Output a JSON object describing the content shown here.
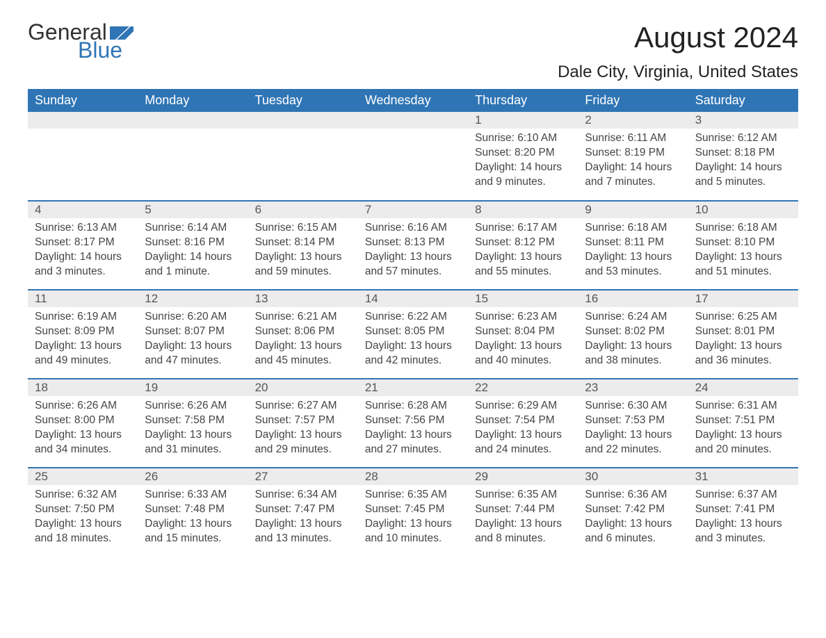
{
  "logo": {
    "text_general": "General",
    "text_blue": "Blue",
    "flag_color": "#2f75b5"
  },
  "title": "August 2024",
  "location": "Dale City, Virginia, United States",
  "colors": {
    "header_bg": "#2f75b5",
    "header_text": "#ffffff",
    "daynum_bg": "#ececec",
    "daynum_text": "#555555",
    "body_text": "#444444",
    "rule": "#2f75b5",
    "page_bg": "#ffffff"
  },
  "day_headers": [
    "Sunday",
    "Monday",
    "Tuesday",
    "Wednesday",
    "Thursday",
    "Friday",
    "Saturday"
  ],
  "weeks": [
    [
      null,
      null,
      null,
      null,
      {
        "n": "1",
        "sunrise": "Sunrise: 6:10 AM",
        "sunset": "Sunset: 8:20 PM",
        "daylight": "Daylight: 14 hours and 9 minutes."
      },
      {
        "n": "2",
        "sunrise": "Sunrise: 6:11 AM",
        "sunset": "Sunset: 8:19 PM",
        "daylight": "Daylight: 14 hours and 7 minutes."
      },
      {
        "n": "3",
        "sunrise": "Sunrise: 6:12 AM",
        "sunset": "Sunset: 8:18 PM",
        "daylight": "Daylight: 14 hours and 5 minutes."
      }
    ],
    [
      {
        "n": "4",
        "sunrise": "Sunrise: 6:13 AM",
        "sunset": "Sunset: 8:17 PM",
        "daylight": "Daylight: 14 hours and 3 minutes."
      },
      {
        "n": "5",
        "sunrise": "Sunrise: 6:14 AM",
        "sunset": "Sunset: 8:16 PM",
        "daylight": "Daylight: 14 hours and 1 minute."
      },
      {
        "n": "6",
        "sunrise": "Sunrise: 6:15 AM",
        "sunset": "Sunset: 8:14 PM",
        "daylight": "Daylight: 13 hours and 59 minutes."
      },
      {
        "n": "7",
        "sunrise": "Sunrise: 6:16 AM",
        "sunset": "Sunset: 8:13 PM",
        "daylight": "Daylight: 13 hours and 57 minutes."
      },
      {
        "n": "8",
        "sunrise": "Sunrise: 6:17 AM",
        "sunset": "Sunset: 8:12 PM",
        "daylight": "Daylight: 13 hours and 55 minutes."
      },
      {
        "n": "9",
        "sunrise": "Sunrise: 6:18 AM",
        "sunset": "Sunset: 8:11 PM",
        "daylight": "Daylight: 13 hours and 53 minutes."
      },
      {
        "n": "10",
        "sunrise": "Sunrise: 6:18 AM",
        "sunset": "Sunset: 8:10 PM",
        "daylight": "Daylight: 13 hours and 51 minutes."
      }
    ],
    [
      {
        "n": "11",
        "sunrise": "Sunrise: 6:19 AM",
        "sunset": "Sunset: 8:09 PM",
        "daylight": "Daylight: 13 hours and 49 minutes."
      },
      {
        "n": "12",
        "sunrise": "Sunrise: 6:20 AM",
        "sunset": "Sunset: 8:07 PM",
        "daylight": "Daylight: 13 hours and 47 minutes."
      },
      {
        "n": "13",
        "sunrise": "Sunrise: 6:21 AM",
        "sunset": "Sunset: 8:06 PM",
        "daylight": "Daylight: 13 hours and 45 minutes."
      },
      {
        "n": "14",
        "sunrise": "Sunrise: 6:22 AM",
        "sunset": "Sunset: 8:05 PM",
        "daylight": "Daylight: 13 hours and 42 minutes."
      },
      {
        "n": "15",
        "sunrise": "Sunrise: 6:23 AM",
        "sunset": "Sunset: 8:04 PM",
        "daylight": "Daylight: 13 hours and 40 minutes."
      },
      {
        "n": "16",
        "sunrise": "Sunrise: 6:24 AM",
        "sunset": "Sunset: 8:02 PM",
        "daylight": "Daylight: 13 hours and 38 minutes."
      },
      {
        "n": "17",
        "sunrise": "Sunrise: 6:25 AM",
        "sunset": "Sunset: 8:01 PM",
        "daylight": "Daylight: 13 hours and 36 minutes."
      }
    ],
    [
      {
        "n": "18",
        "sunrise": "Sunrise: 6:26 AM",
        "sunset": "Sunset: 8:00 PM",
        "daylight": "Daylight: 13 hours and 34 minutes."
      },
      {
        "n": "19",
        "sunrise": "Sunrise: 6:26 AM",
        "sunset": "Sunset: 7:58 PM",
        "daylight": "Daylight: 13 hours and 31 minutes."
      },
      {
        "n": "20",
        "sunrise": "Sunrise: 6:27 AM",
        "sunset": "Sunset: 7:57 PM",
        "daylight": "Daylight: 13 hours and 29 minutes."
      },
      {
        "n": "21",
        "sunrise": "Sunrise: 6:28 AM",
        "sunset": "Sunset: 7:56 PM",
        "daylight": "Daylight: 13 hours and 27 minutes."
      },
      {
        "n": "22",
        "sunrise": "Sunrise: 6:29 AM",
        "sunset": "Sunset: 7:54 PM",
        "daylight": "Daylight: 13 hours and 24 minutes."
      },
      {
        "n": "23",
        "sunrise": "Sunrise: 6:30 AM",
        "sunset": "Sunset: 7:53 PM",
        "daylight": "Daylight: 13 hours and 22 minutes."
      },
      {
        "n": "24",
        "sunrise": "Sunrise: 6:31 AM",
        "sunset": "Sunset: 7:51 PM",
        "daylight": "Daylight: 13 hours and 20 minutes."
      }
    ],
    [
      {
        "n": "25",
        "sunrise": "Sunrise: 6:32 AM",
        "sunset": "Sunset: 7:50 PM",
        "daylight": "Daylight: 13 hours and 18 minutes."
      },
      {
        "n": "26",
        "sunrise": "Sunrise: 6:33 AM",
        "sunset": "Sunset: 7:48 PM",
        "daylight": "Daylight: 13 hours and 15 minutes."
      },
      {
        "n": "27",
        "sunrise": "Sunrise: 6:34 AM",
        "sunset": "Sunset: 7:47 PM",
        "daylight": "Daylight: 13 hours and 13 minutes."
      },
      {
        "n": "28",
        "sunrise": "Sunrise: 6:35 AM",
        "sunset": "Sunset: 7:45 PM",
        "daylight": "Daylight: 13 hours and 10 minutes."
      },
      {
        "n": "29",
        "sunrise": "Sunrise: 6:35 AM",
        "sunset": "Sunset: 7:44 PM",
        "daylight": "Daylight: 13 hours and 8 minutes."
      },
      {
        "n": "30",
        "sunrise": "Sunrise: 6:36 AM",
        "sunset": "Sunset: 7:42 PM",
        "daylight": "Daylight: 13 hours and 6 minutes."
      },
      {
        "n": "31",
        "sunrise": "Sunrise: 6:37 AM",
        "sunset": "Sunset: 7:41 PM",
        "daylight": "Daylight: 13 hours and 3 minutes."
      }
    ]
  ]
}
